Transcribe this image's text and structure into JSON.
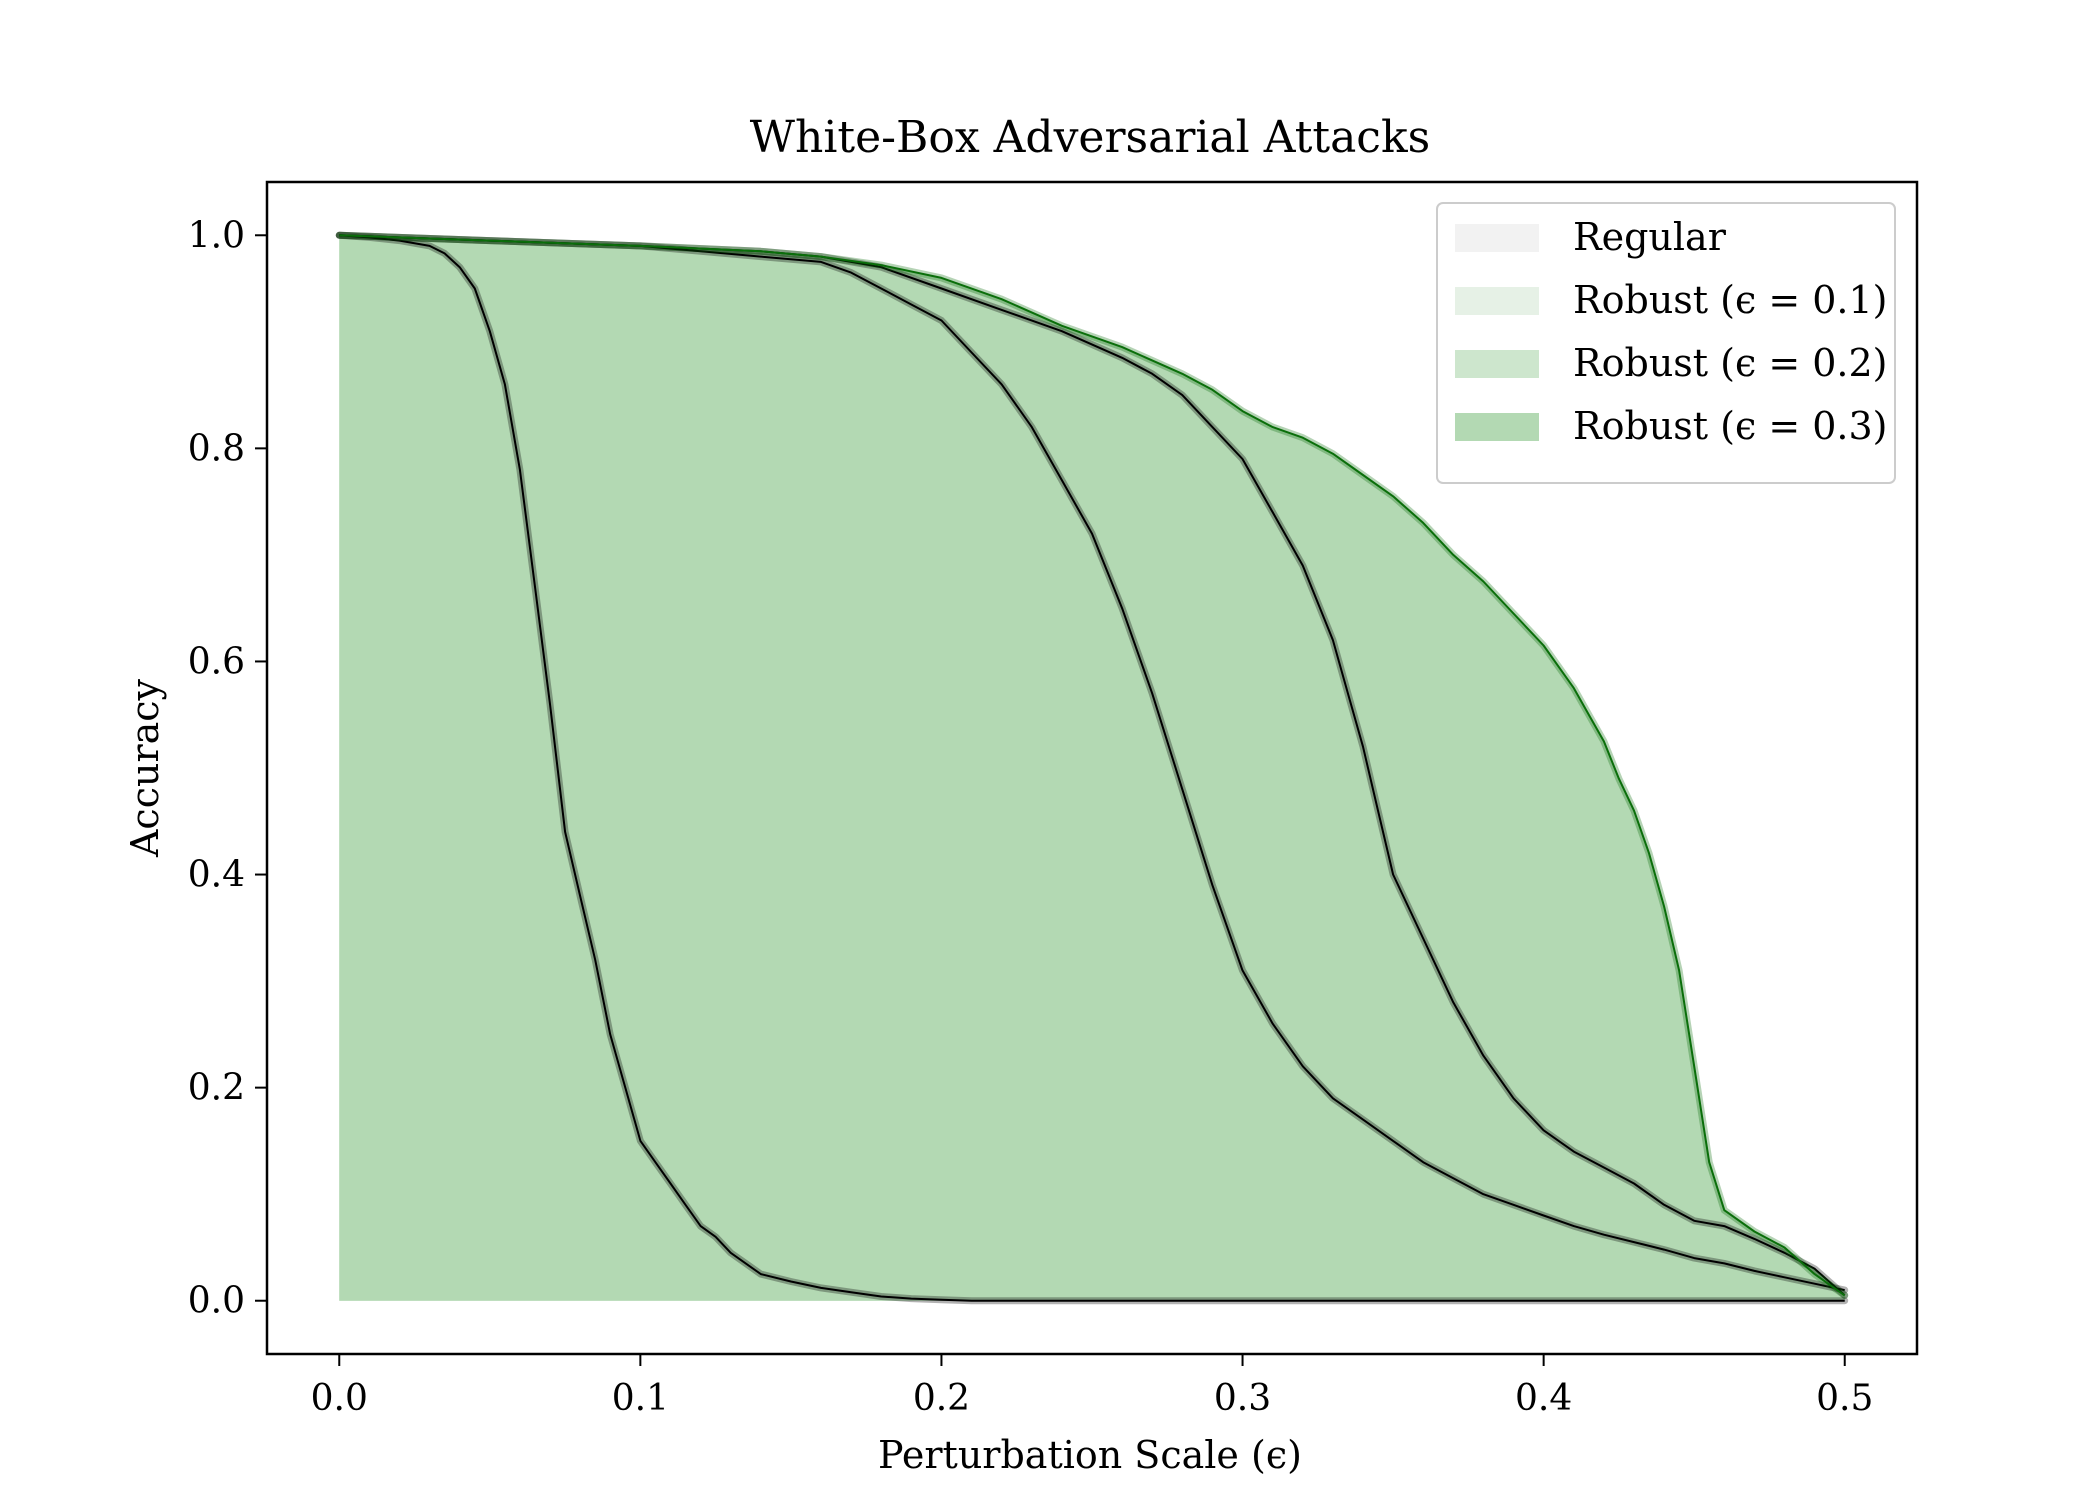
{
  "chart_data": {
    "type": "area",
    "title": "White-Box Adversarial Attacks",
    "xlabel": "Perturbation Scale (ϵ)",
    "ylabel": "Accuracy",
    "xlim": [
      -0.024,
      0.524
    ],
    "ylim": [
      -0.05,
      1.05
    ],
    "xticks": [
      0.0,
      0.1,
      0.2,
      0.3,
      0.4,
      0.5
    ],
    "xtick_labels": [
      "0.0",
      "0.1",
      "0.2",
      "0.3",
      "0.4",
      "0.5"
    ],
    "yticks": [
      0.0,
      0.2,
      0.4,
      0.6,
      0.8,
      1.0
    ],
    "ytick_labels": [
      "0.0",
      "0.2",
      "0.4",
      "0.6",
      "0.8",
      "1.0"
    ],
    "grid": false,
    "legend_position": "top-right",
    "series": [
      {
        "name": "Regular",
        "fill_color": "#f2f2f2",
        "line_color": "#000000",
        "x": [
          0.0,
          0.01,
          0.02,
          0.03,
          0.035,
          0.04,
          0.045,
          0.05,
          0.055,
          0.06,
          0.065,
          0.07,
          0.075,
          0.08,
          0.085,
          0.09,
          0.095,
          0.1,
          0.105,
          0.11,
          0.115,
          0.12,
          0.125,
          0.13,
          0.135,
          0.14,
          0.15,
          0.16,
          0.17,
          0.18,
          0.19,
          0.2,
          0.21,
          0.3,
          0.4,
          0.5
        ],
        "y": [
          1.0,
          0.998,
          0.995,
          0.99,
          0.983,
          0.97,
          0.95,
          0.91,
          0.86,
          0.78,
          0.67,
          0.56,
          0.44,
          0.38,
          0.32,
          0.25,
          0.2,
          0.15,
          0.13,
          0.11,
          0.09,
          0.07,
          0.06,
          0.045,
          0.035,
          0.025,
          0.018,
          0.012,
          0.008,
          0.004,
          0.002,
          0.001,
          0.0,
          0.0,
          0.0,
          0.0
        ]
      },
      {
        "name": "Robust (ϵ = 0.1)",
        "fill_color": "#e6f1e6",
        "line_color": "#000000",
        "x": [
          0.0,
          0.05,
          0.1,
          0.14,
          0.16,
          0.17,
          0.18,
          0.19,
          0.2,
          0.21,
          0.22,
          0.23,
          0.24,
          0.25,
          0.26,
          0.27,
          0.28,
          0.29,
          0.3,
          0.31,
          0.32,
          0.33,
          0.34,
          0.35,
          0.36,
          0.37,
          0.38,
          0.39,
          0.4,
          0.41,
          0.42,
          0.43,
          0.44,
          0.45,
          0.46,
          0.47,
          0.48,
          0.49,
          0.5
        ],
        "y": [
          1.0,
          0.995,
          0.99,
          0.98,
          0.975,
          0.965,
          0.95,
          0.935,
          0.92,
          0.89,
          0.86,
          0.82,
          0.77,
          0.72,
          0.65,
          0.57,
          0.48,
          0.39,
          0.31,
          0.26,
          0.22,
          0.19,
          0.17,
          0.15,
          0.13,
          0.115,
          0.1,
          0.09,
          0.08,
          0.07,
          0.062,
          0.055,
          0.048,
          0.04,
          0.035,
          0.028,
          0.022,
          0.016,
          0.01
        ]
      },
      {
        "name": "Robust (ϵ = 0.2)",
        "fill_color": "#cde6cd",
        "line_color": "#000000",
        "x": [
          0.0,
          0.05,
          0.1,
          0.14,
          0.16,
          0.18,
          0.2,
          0.22,
          0.24,
          0.26,
          0.27,
          0.28,
          0.29,
          0.3,
          0.31,
          0.32,
          0.33,
          0.335,
          0.34,
          0.345,
          0.35,
          0.36,
          0.37,
          0.38,
          0.39,
          0.4,
          0.41,
          0.42,
          0.43,
          0.44,
          0.45,
          0.46,
          0.47,
          0.48,
          0.49,
          0.5
        ],
        "y": [
          1.0,
          0.995,
          0.99,
          0.985,
          0.98,
          0.97,
          0.95,
          0.93,
          0.91,
          0.885,
          0.87,
          0.85,
          0.82,
          0.79,
          0.74,
          0.69,
          0.62,
          0.57,
          0.52,
          0.46,
          0.4,
          0.34,
          0.28,
          0.23,
          0.19,
          0.16,
          0.14,
          0.125,
          0.11,
          0.09,
          0.075,
          0.07,
          0.058,
          0.045,
          0.03,
          0.005
        ]
      },
      {
        "name": "Robust (ϵ = 0.3)",
        "fill_color": "#b3d9b3",
        "line_color": "#0a6e0a",
        "x": [
          0.0,
          0.05,
          0.1,
          0.14,
          0.16,
          0.18,
          0.2,
          0.22,
          0.24,
          0.26,
          0.28,
          0.29,
          0.3,
          0.31,
          0.32,
          0.33,
          0.34,
          0.35,
          0.36,
          0.37,
          0.38,
          0.39,
          0.4,
          0.405,
          0.41,
          0.415,
          0.42,
          0.425,
          0.43,
          0.435,
          0.44,
          0.445,
          0.45,
          0.455,
          0.46,
          0.47,
          0.48,
          0.49,
          0.5
        ],
        "y": [
          1.0,
          0.995,
          0.99,
          0.985,
          0.98,
          0.972,
          0.96,
          0.94,
          0.915,
          0.895,
          0.87,
          0.855,
          0.835,
          0.82,
          0.81,
          0.795,
          0.775,
          0.755,
          0.73,
          0.7,
          0.675,
          0.645,
          0.615,
          0.595,
          0.575,
          0.55,
          0.525,
          0.49,
          0.46,
          0.42,
          0.37,
          0.31,
          0.22,
          0.13,
          0.085,
          0.065,
          0.05,
          0.025,
          0.005
        ]
      }
    ]
  }
}
